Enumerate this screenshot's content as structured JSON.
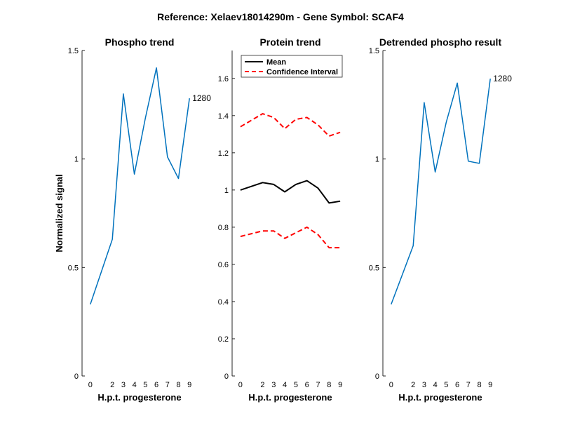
{
  "figure": {
    "suptitle": "Reference:  Xelaev18014290m - Gene Symbol:  SCAF4"
  },
  "chart_data": [
    {
      "type": "line",
      "title": "Phospho trend",
      "xlabel": "H.p.t. progesterone",
      "ylabel": "Normalized signal",
      "x": [
        0,
        2,
        3,
        4,
        5,
        6,
        7,
        8,
        9
      ],
      "xticks": [
        "0",
        "2",
        "3",
        "4",
        "5",
        "6",
        "7",
        "8",
        "9"
      ],
      "ylim": [
        0,
        1.5
      ],
      "yticks": [
        "0",
        "0.5",
        "1",
        "1.5"
      ],
      "ytick_values": [
        0,
        0.5,
        1,
        1.5
      ],
      "series": [
        {
          "values": [
            0.33,
            0.63,
            1.3,
            0.93,
            1.19,
            1.42,
            1.01,
            0.91,
            1.28
          ],
          "color": "#0072BD",
          "style": "solid"
        }
      ],
      "annotation": "1280"
    },
    {
      "type": "line",
      "title": "Protein trend",
      "xlabel": "H.p.t. progesterone",
      "x": [
        0,
        2,
        3,
        4,
        5,
        6,
        7,
        8,
        9
      ],
      "xticks": [
        "0",
        "2",
        "3",
        "4",
        "5",
        "6",
        "7",
        "8",
        "9"
      ],
      "ylim": [
        0,
        1.75
      ],
      "yticks": [
        "0",
        "0.2",
        "0.4",
        "0.6",
        "0.8",
        "1",
        "1.2",
        "1.4",
        "1.6"
      ],
      "ytick_values": [
        0,
        0.2,
        0.4,
        0.6,
        0.8,
        1,
        1.2,
        1.4,
        1.6
      ],
      "legend_position": "top-left",
      "series": [
        {
          "name": "Mean",
          "values": [
            1.0,
            1.04,
            1.03,
            0.99,
            1.03,
            1.05,
            1.01,
            0.93,
            0.94
          ],
          "color": "#000000",
          "style": "solid"
        },
        {
          "name": "Confidence Interval",
          "values": [
            1.34,
            1.41,
            1.39,
            1.33,
            1.38,
            1.39,
            1.35,
            1.29,
            1.31
          ],
          "color": "#FF0000",
          "style": "dashed"
        },
        {
          "values": [
            0.75,
            0.78,
            0.78,
            0.74,
            0.77,
            0.8,
            0.76,
            0.69,
            0.69
          ],
          "color": "#FF0000",
          "style": "dashed"
        }
      ]
    },
    {
      "type": "line",
      "title": "Detrended phospho result",
      "xlabel": "H.p.t. progesterone",
      "x": [
        0,
        2,
        3,
        4,
        5,
        6,
        7,
        8,
        9
      ],
      "xticks": [
        "0",
        "2",
        "3",
        "4",
        "5",
        "6",
        "7",
        "8",
        "9"
      ],
      "ylim": [
        0,
        1.5
      ],
      "yticks": [
        "0",
        "0.5",
        "1",
        "1.5"
      ],
      "ytick_values": [
        0,
        0.5,
        1,
        1.5
      ],
      "series": [
        {
          "values": [
            0.33,
            0.6,
            1.26,
            0.94,
            1.17,
            1.35,
            0.99,
            0.98,
            1.37
          ],
          "color": "#0072BD",
          "style": "solid"
        }
      ],
      "annotation": "1280"
    }
  ]
}
